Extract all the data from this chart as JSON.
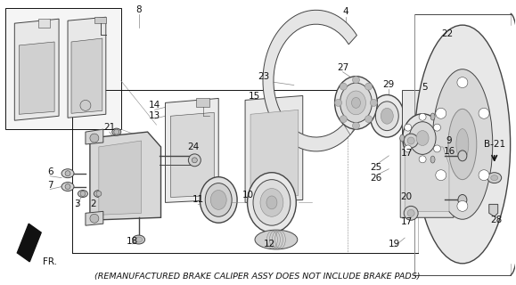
{
  "footer": "(REMANUFACTURED BRAKE CALIPER ASSY DOES NOT INCLUDE BRAKE PADS)",
  "bg_color": "#ffffff",
  "footer_fontsize": 6.8,
  "label_fontsize": 7.5,
  "fig_w": 5.79,
  "fig_h": 3.2,
  "dpi": 100
}
